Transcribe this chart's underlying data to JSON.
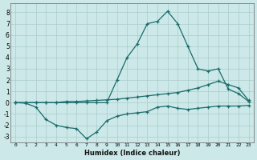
{
  "xlabel": "Humidex (Indice chaleur)",
  "bg_color": "#cce8e8",
  "grid_color": "#aacccc",
  "line_color": "#1a6b6b",
  "xlim": [
    -0.5,
    23.5
  ],
  "ylim": [
    -3.5,
    8.8
  ],
  "xticks": [
    0,
    1,
    2,
    3,
    4,
    5,
    6,
    7,
    8,
    9,
    10,
    11,
    12,
    13,
    14,
    15,
    16,
    17,
    18,
    19,
    20,
    21,
    22,
    23
  ],
  "yticks": [
    -3,
    -2,
    -1,
    0,
    1,
    2,
    3,
    4,
    5,
    6,
    7,
    8
  ],
  "line_spike_x": [
    0,
    1,
    2,
    3,
    4,
    5,
    6,
    7,
    8,
    9,
    10,
    11,
    12,
    13,
    14,
    15,
    16,
    17,
    18,
    19,
    20,
    21,
    22,
    23
  ],
  "line_spike_y": [
    0,
    0,
    0,
    0,
    0,
    0,
    0,
    0,
    0,
    0,
    2.0,
    4.0,
    5.2,
    7.0,
    7.2,
    8.1,
    7.0,
    5.0,
    3.0,
    2.8,
    3.0,
    1.2,
    0.8,
    0.1
  ],
  "line_upper_x": [
    0,
    1,
    2,
    3,
    4,
    5,
    6,
    7,
    8,
    9,
    10,
    11,
    12,
    13,
    14,
    15,
    16,
    17,
    18,
    19,
    20,
    21,
    22,
    23
  ],
  "line_upper_y": [
    0,
    0,
    0,
    0,
    0,
    0.1,
    0.1,
    0.15,
    0.2,
    0.25,
    0.3,
    0.4,
    0.5,
    0.6,
    0.7,
    0.8,
    0.9,
    1.1,
    1.3,
    1.6,
    1.9,
    1.6,
    1.3,
    0.2
  ],
  "line_lower_x": [
    0,
    1,
    2,
    3,
    4,
    5,
    6,
    7,
    8,
    9,
    10,
    11,
    12,
    13,
    14,
    15,
    16,
    17,
    18,
    19,
    20,
    21,
    22,
    23
  ],
  "line_lower_y": [
    0,
    -0.05,
    -0.4,
    -1.5,
    -2.0,
    -2.2,
    -2.3,
    -3.2,
    -2.6,
    -1.6,
    -1.2,
    -1.0,
    -0.9,
    -0.8,
    -0.4,
    -0.3,
    -0.5,
    -0.6,
    -0.5,
    -0.4,
    -0.3,
    -0.3,
    -0.3,
    -0.25
  ]
}
